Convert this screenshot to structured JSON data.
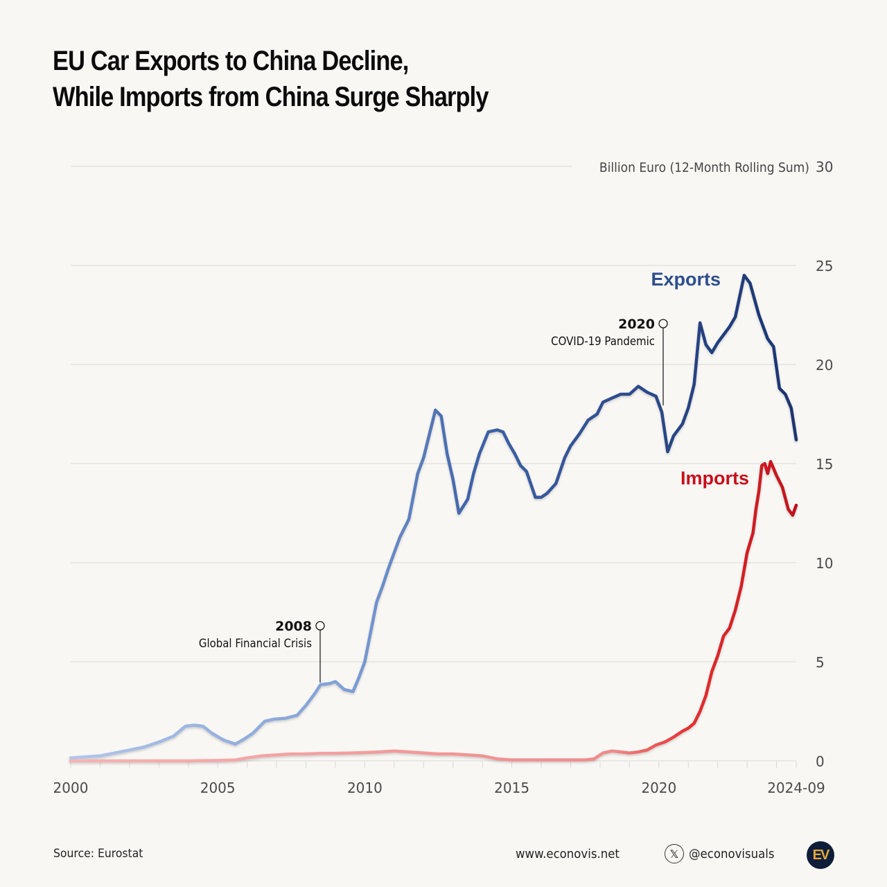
{
  "title": {
    "line1": "EU Car Exports to China Decline,",
    "line2": "While Imports from China Surge Sharply"
  },
  "footer": {
    "source": "Source: Eurostat",
    "website": "www.econovis.net",
    "handle": "@econovisuals",
    "logo_text": "EV"
  },
  "colors": {
    "background": "#f8f7f4",
    "exports_dark": "#1f3d7a",
    "exports_light": "#a8bde3",
    "imports_dark": "#c8101b",
    "imports_light": "#f29a9a",
    "grid": "#dcdad5",
    "axis_text": "#4a4a4a"
  },
  "chart_data": {
    "type": "line",
    "title": "EU Car Exports to China Decline, While Imports from China Surge Sharply",
    "xlabel": "",
    "ylabel": "Billion Euro (12-Month Rolling Sum)",
    "xlim": [
      2000,
      2024.67
    ],
    "ylim": [
      0,
      30
    ],
    "grid": true,
    "y_axis_position": "right",
    "x_ticks": [
      {
        "value": 2000,
        "label": "2000"
      },
      {
        "value": 2005,
        "label": "2005"
      },
      {
        "value": 2010,
        "label": "2010"
      },
      {
        "value": 2015,
        "label": "2015"
      },
      {
        "value": 2020,
        "label": "2020"
      },
      {
        "value": 2024.67,
        "label": "2024-09"
      }
    ],
    "y_ticks": [
      0,
      5,
      10,
      15,
      20,
      25,
      30
    ],
    "series": [
      {
        "name": "Exports",
        "label": "Exports",
        "x": [
          2000.0,
          2000.5,
          2001.0,
          2001.5,
          2002.0,
          2002.5,
          2003.0,
          2003.5,
          2003.9,
          2004.2,
          2004.5,
          2004.8,
          2005.2,
          2005.6,
          2005.9,
          2006.2,
          2006.6,
          2006.9,
          2007.3,
          2007.7,
          2008.0,
          2008.3,
          2008.5,
          2008.8,
          2009.0,
          2009.3,
          2009.6,
          2009.8,
          2010.0,
          2010.2,
          2010.4,
          2010.6,
          2010.8,
          2011.0,
          2011.2,
          2011.5,
          2011.8,
          2012.0,
          2012.2,
          2012.4,
          2012.6,
          2012.8,
          2013.0,
          2013.2,
          2013.5,
          2013.7,
          2013.9,
          2014.2,
          2014.5,
          2014.7,
          2014.9,
          2015.1,
          2015.3,
          2015.5,
          2015.8,
          2016.0,
          2016.2,
          2016.5,
          2016.8,
          2017.0,
          2017.3,
          2017.6,
          2017.9,
          2018.1,
          2018.4,
          2018.7,
          2019.0,
          2019.3,
          2019.6,
          2019.9,
          2020.1,
          2020.3,
          2020.5,
          2020.8,
          2021.0,
          2021.2,
          2021.4,
          2021.6,
          2021.8,
          2022.0,
          2022.2,
          2022.4,
          2022.6,
          2022.9,
          2023.1,
          2023.4,
          2023.7,
          2023.9,
          2024.1,
          2024.3,
          2024.5,
          2024.67
        ],
        "values": [
          0.15,
          0.2,
          0.25,
          0.4,
          0.55,
          0.7,
          0.95,
          1.25,
          1.75,
          1.8,
          1.75,
          1.4,
          1.05,
          0.85,
          1.1,
          1.4,
          2.0,
          2.1,
          2.15,
          2.3,
          2.8,
          3.4,
          3.85,
          3.9,
          4.0,
          3.6,
          3.5,
          4.2,
          5.0,
          6.5,
          8.0,
          8.8,
          9.7,
          10.5,
          11.3,
          12.2,
          14.5,
          15.3,
          16.5,
          17.7,
          17.4,
          15.5,
          14.2,
          12.5,
          13.2,
          14.5,
          15.5,
          16.6,
          16.7,
          16.6,
          16.0,
          15.5,
          14.9,
          14.6,
          13.3,
          13.3,
          13.5,
          14.0,
          15.3,
          15.9,
          16.5,
          17.2,
          17.5,
          18.1,
          18.3,
          18.5,
          18.5,
          18.9,
          18.6,
          18.4,
          17.6,
          15.6,
          16.4,
          17.0,
          17.8,
          19.0,
          22.1,
          21.0,
          20.6,
          21.1,
          21.5,
          21.9,
          22.4,
          24.5,
          24.1,
          22.5,
          21.3,
          20.9,
          18.8,
          18.5,
          17.8,
          16.2
        ]
      },
      {
        "name": "Imports",
        "label": "Imports",
        "x": [
          2000.0,
          2001.0,
          2002.0,
          2003.0,
          2004.0,
          2005.0,
          2005.6,
          2006.0,
          2006.5,
          2007.0,
          2007.5,
          2008.0,
          2008.5,
          2009.0,
          2009.5,
          2010.0,
          2010.5,
          2011.0,
          2011.5,
          2012.0,
          2012.5,
          2013.0,
          2013.5,
          2014.0,
          2014.5,
          2015.0,
          2015.5,
          2016.0,
          2016.5,
          2017.0,
          2017.5,
          2017.8,
          2018.1,
          2018.4,
          2018.7,
          2019.0,
          2019.3,
          2019.6,
          2019.9,
          2020.2,
          2020.5,
          2020.8,
          2021.0,
          2021.2,
          2021.4,
          2021.6,
          2021.8,
          2022.0,
          2022.2,
          2022.4,
          2022.6,
          2022.8,
          2023.0,
          2023.2,
          2023.3,
          2023.4,
          2023.5,
          2023.6,
          2023.7,
          2023.8,
          2024.0,
          2024.2,
          2024.4,
          2024.55,
          2024.67
        ],
        "values": [
          0.0,
          0.0,
          0.0,
          0.0,
          0.0,
          0.02,
          0.05,
          0.15,
          0.25,
          0.3,
          0.35,
          0.35,
          0.38,
          0.38,
          0.4,
          0.42,
          0.45,
          0.5,
          0.45,
          0.4,
          0.35,
          0.35,
          0.3,
          0.25,
          0.1,
          0.05,
          0.05,
          0.05,
          0.05,
          0.05,
          0.05,
          0.1,
          0.4,
          0.5,
          0.45,
          0.4,
          0.45,
          0.55,
          0.8,
          0.95,
          1.2,
          1.5,
          1.65,
          1.9,
          2.5,
          3.3,
          4.5,
          5.3,
          6.3,
          6.7,
          7.6,
          8.8,
          10.5,
          11.5,
          12.7,
          13.6,
          14.9,
          15.0,
          14.5,
          15.1,
          14.4,
          13.8,
          12.7,
          12.4,
          12.9
        ]
      }
    ],
    "annotations": [
      {
        "year_label": "2008",
        "text": "Global Financial Crisis",
        "x": 2008.45
      },
      {
        "year_label": "2020",
        "text": "COVID-19 Pandemic",
        "x": 2020.25
      }
    ]
  }
}
